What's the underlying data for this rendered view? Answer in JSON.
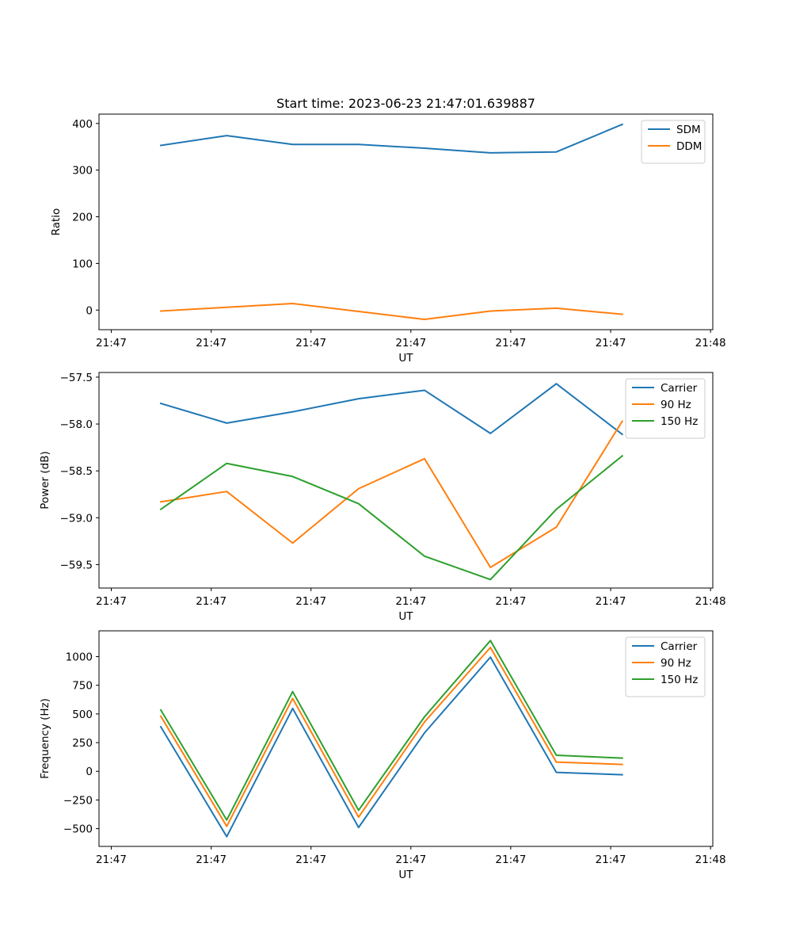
{
  "figure": {
    "title": "Start time: 2023-06-23 21:47:01.639887"
  },
  "chart_data": [
    {
      "type": "line",
      "title": "Start time: 2023-06-23 21:47:01.639887",
      "xlabel": "UT",
      "ylabel": "Ratio",
      "x_tick_labels": [
        "21:47",
        "21:47",
        "21:47",
        "21:47",
        "21:47",
        "21:47",
        "21:48"
      ],
      "y_ticks": [
        0,
        100,
        200,
        300,
        400
      ],
      "y_tick_labels": [
        "0",
        "100",
        "200",
        "300",
        "400"
      ],
      "ylim": [
        -42,
        420
      ],
      "legend_position": "top-right",
      "grid": false,
      "series": [
        {
          "name": "SDM",
          "color": "#1f77b4",
          "values": [
            353,
            374,
            355,
            355,
            347,
            337,
            339,
            398
          ]
        },
        {
          "name": "DDM",
          "color": "#ff7f0e",
          "values": [
            -2,
            6,
            14,
            -3,
            -20,
            -2,
            4,
            -9
          ]
        }
      ]
    },
    {
      "type": "line",
      "xlabel": "UT",
      "ylabel": "Power (dB)",
      "x_tick_labels": [
        "21:47",
        "21:47",
        "21:47",
        "21:47",
        "21:47",
        "21:47",
        "21:48"
      ],
      "y_ticks": [
        -59.5,
        -59.0,
        -58.5,
        -58.0,
        -57.5
      ],
      "y_tick_labels": [
        "−59.5",
        "−59.0",
        "−58.5",
        "−58.0",
        "−57.5"
      ],
      "ylim": [
        -59.75,
        -57.45
      ],
      "legend_position": "top-right",
      "grid": false,
      "series": [
        {
          "name": "Carrier",
          "color": "#1f77b4",
          "values": [
            -57.78,
            -57.99,
            -57.87,
            -57.73,
            -57.64,
            -58.1,
            -57.57,
            -58.11
          ]
        },
        {
          "name": "90 Hz",
          "color": "#ff7f0e",
          "values": [
            -58.83,
            -58.72,
            -59.27,
            -58.69,
            -58.37,
            -59.53,
            -59.1,
            -57.97
          ]
        },
        {
          "name": "150 Hz",
          "color": "#2ca02c",
          "values": [
            -58.91,
            -58.42,
            -58.56,
            -58.85,
            -59.41,
            -59.66,
            -58.91,
            -58.34
          ]
        }
      ]
    },
    {
      "type": "line",
      "xlabel": "UT",
      "ylabel": "Frequency (Hz)",
      "x_tick_labels": [
        "21:47",
        "21:47",
        "21:47",
        "21:47",
        "21:47",
        "21:47",
        "21:48"
      ],
      "y_ticks": [
        -500,
        -250,
        0,
        250,
        500,
        750,
        1000
      ],
      "y_tick_labels": [
        "−500",
        "−250",
        "0",
        "250",
        "500",
        "750",
        "1000"
      ],
      "ylim": [
        -655,
        1225
      ],
      "legend_position": "top-right",
      "grid": false,
      "series": [
        {
          "name": "Carrier",
          "color": "#1f77b4",
          "values": [
            388,
            -570,
            548,
            -490,
            335,
            995,
            -10,
            -30
          ]
        },
        {
          "name": "90 Hz",
          "color": "#ff7f0e",
          "values": [
            480,
            -480,
            635,
            -400,
            430,
            1080,
            80,
            60
          ]
        },
        {
          "name": "150 Hz",
          "color": "#2ca02c",
          "values": [
            535,
            -425,
            695,
            -340,
            475,
            1140,
            140,
            115
          ]
        }
      ]
    }
  ]
}
